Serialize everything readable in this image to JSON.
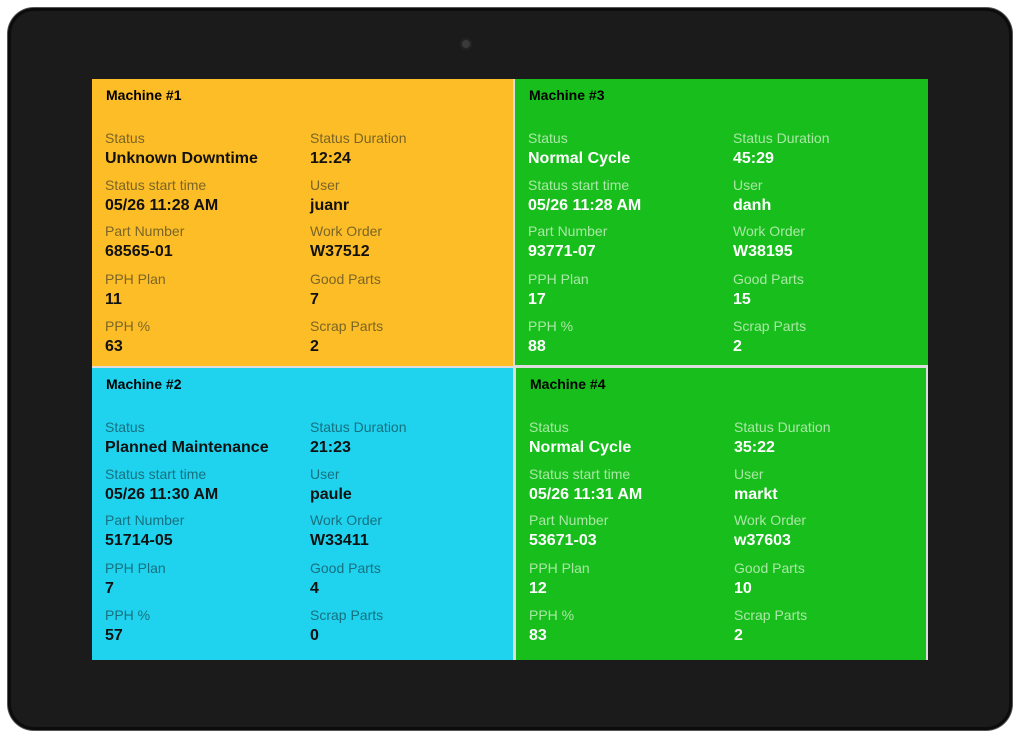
{
  "colors": {
    "downtime": "#FDBD26",
    "maintenance": "#1FD3EF",
    "normal": "#18BE1C"
  },
  "labels": {
    "status": "Status",
    "status_duration": "Status Duration",
    "status_start": "Status start time",
    "user": "User",
    "part_number": "Part Number",
    "work_order": "Work Order",
    "pph_plan": "PPH Plan",
    "good_parts": "Good Parts",
    "pph_pct": "PPH %",
    "scrap_parts": "Scrap Parts"
  },
  "machines": [
    {
      "title": "Machine #1",
      "color": "#FDBD26",
      "status": "Unknown Downtime",
      "status_duration": "12:24",
      "status_start": "05/26 11:28 AM",
      "user": "juanr",
      "part_number": "68565-01",
      "work_order": "W37512",
      "pph_plan": "11",
      "good_parts": "7",
      "pph_pct": "63",
      "scrap_parts": "2"
    },
    {
      "title": "Machine #3",
      "color": "#18BE1C",
      "status": "Normal Cycle",
      "status_duration": "45:29",
      "status_start": "05/26 11:28 AM",
      "user": "danh",
      "part_number": "93771-07",
      "work_order": "W38195",
      "pph_plan": "17",
      "good_parts": "15",
      "pph_pct": "88",
      "scrap_parts": "2"
    },
    {
      "title": "Machine #2",
      "color": "#1FD3EF",
      "status": "Planned Maintenance",
      "status_duration": "21:23",
      "status_start": "05/26 11:30 AM",
      "user": "paule",
      "part_number": "51714-05",
      "work_order": "W33411",
      "pph_plan": "7",
      "good_parts": "4",
      "pph_pct": "57",
      "scrap_parts": "0"
    },
    {
      "title": "Machine #4",
      "color": "#18BE1C",
      "status": "Normal Cycle",
      "status_duration": "35:22",
      "status_start": "05/26 11:31 AM",
      "user": "markt",
      "part_number": "53671-03",
      "work_order": "w37603",
      "pph_plan": "12",
      "good_parts": "10",
      "pph_pct": "83",
      "scrap_parts": "2"
    }
  ]
}
